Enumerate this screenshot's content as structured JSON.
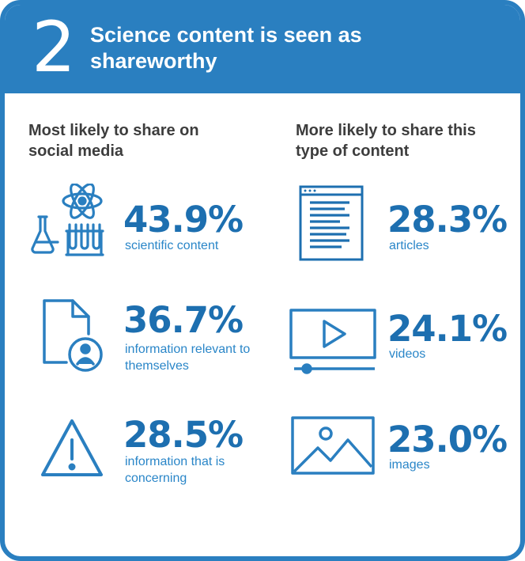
{
  "header": {
    "number": "2",
    "title": "Science content is seen as shareworthy"
  },
  "colors": {
    "brand_blue": "#2a7fc0",
    "stat_blue": "#1d6fb0",
    "caption_blue": "#2a86c8",
    "heading_gray": "#3d3d3d"
  },
  "left": {
    "heading": "Most likely to share on social media",
    "stats": [
      {
        "value": "43.9%",
        "label": "scientific content",
        "icon": "science-icon"
      },
      {
        "value": "36.7%",
        "label": "information relevant to themselves",
        "icon": "personal-document-icon"
      },
      {
        "value": "28.5%",
        "label": "information that is concerning",
        "icon": "warning-icon"
      }
    ]
  },
  "right": {
    "heading": "More likely to share this type of content",
    "stats": [
      {
        "value": "28.3%",
        "label": "articles",
        "icon": "article-icon"
      },
      {
        "value": "24.1%",
        "label": "videos",
        "icon": "video-player-icon"
      },
      {
        "value": "23.0%",
        "label": "images",
        "icon": "image-icon"
      }
    ]
  }
}
